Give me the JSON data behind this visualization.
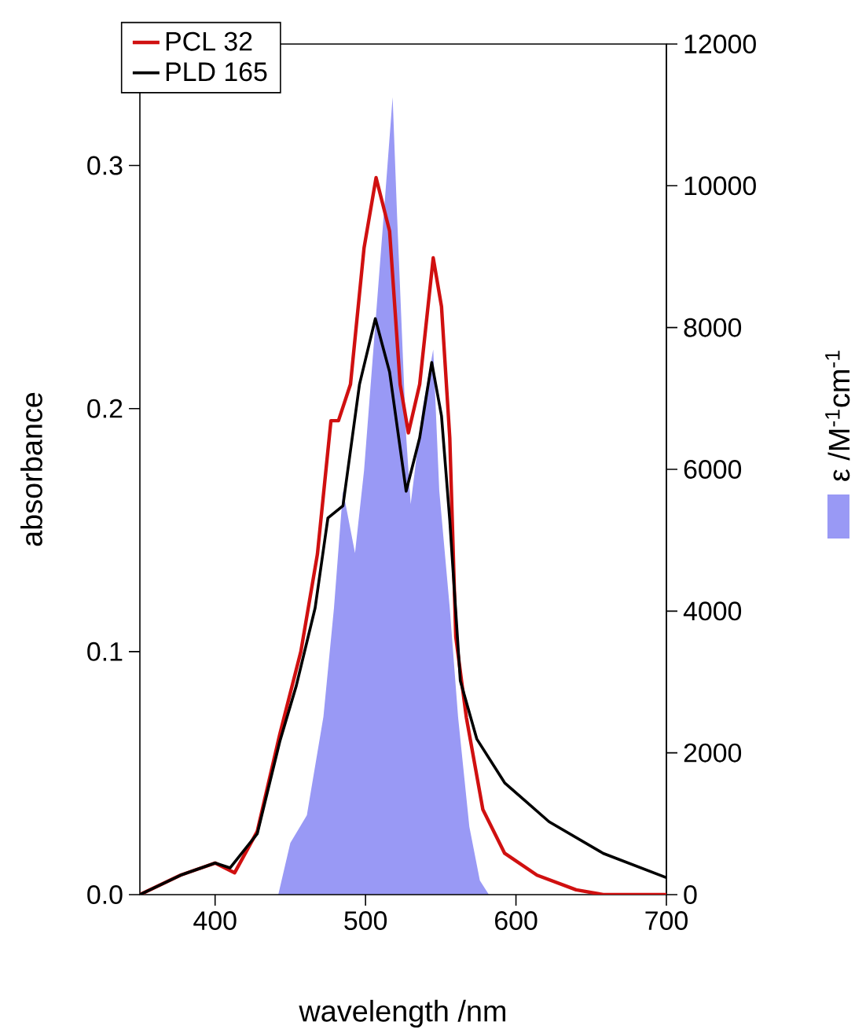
{
  "chart_data": {
    "type": "line",
    "xlabel": "wavelength /nm",
    "ylabel": "absorbance",
    "y2label": "ε /M$^{-1}$cm$^{-1}$",
    "xlim": [
      350,
      700
    ],
    "xticks": [
      400,
      500,
      600,
      700
    ],
    "ylim": [
      0,
      0.35
    ],
    "yticks": [
      {
        "value": 0,
        "label": "0.0"
      },
      0.1,
      0.2,
      0.3
    ],
    "y2lim": [
      0,
      12000
    ],
    "y2ticks": [
      0,
      2000,
      4000,
      6000,
      8000,
      10000,
      12000
    ],
    "legend": "top left",
    "series": [
      {
        "type": "area",
        "axis": "y2",
        "color": "#9999f5",
        "x": [
          442,
          450,
          461,
          472,
          479,
          485,
          493,
          499,
          512,
          518,
          521,
          527,
          530,
          538,
          545,
          549,
          556,
          561.5,
          569,
          576,
          582
        ],
        "values": [
          0,
          730,
          1120,
          2510,
          4040,
          5700,
          4820,
          5980,
          9560,
          11250,
          9560,
          6470,
          5510,
          6870,
          7690,
          5700,
          4040,
          2510,
          960,
          200,
          0
        ]
      },
      {
        "name": "PCL 32",
        "type": "line",
        "color": "#d01010",
        "x": [
          350,
          377,
          400,
          413,
          428,
          443,
          457,
          468,
          477,
          482,
          490,
          499,
          507,
          516,
          523,
          528.5,
          536,
          545,
          550.5,
          556,
          560,
          567,
          578,
          592.5,
          614,
          640,
          658,
          700
        ],
        "values": [
          0,
          0.008,
          0.013,
          0.009,
          0.026,
          0.066,
          0.1,
          0.14,
          0.195,
          0.195,
          0.21,
          0.266,
          0.295,
          0.273,
          0.21,
          0.19,
          0.21,
          0.262,
          0.242,
          0.188,
          0.106,
          0.073,
          0.035,
          0.017,
          0.008,
          0.002,
          0,
          0
        ]
      },
      {
        "name": "PLD 165",
        "type": "line",
        "color": "#000000",
        "x": [
          350,
          377,
          400,
          410,
          428,
          443,
          454,
          466.5,
          475,
          485,
          496,
          506.5,
          516,
          527,
          536,
          544,
          550.5,
          556,
          563,
          574,
          592.5,
          622,
          658,
          700
        ],
        "values": [
          0,
          0.008,
          0.013,
          0.011,
          0.025,
          0.063,
          0.086,
          0.118,
          0.155,
          0.16,
          0.21,
          0.237,
          0.215,
          0.166,
          0.188,
          0.219,
          0.197,
          0.154,
          0.088,
          0.064,
          0.046,
          0.03,
          0.017,
          0.007
        ]
      }
    ]
  }
}
